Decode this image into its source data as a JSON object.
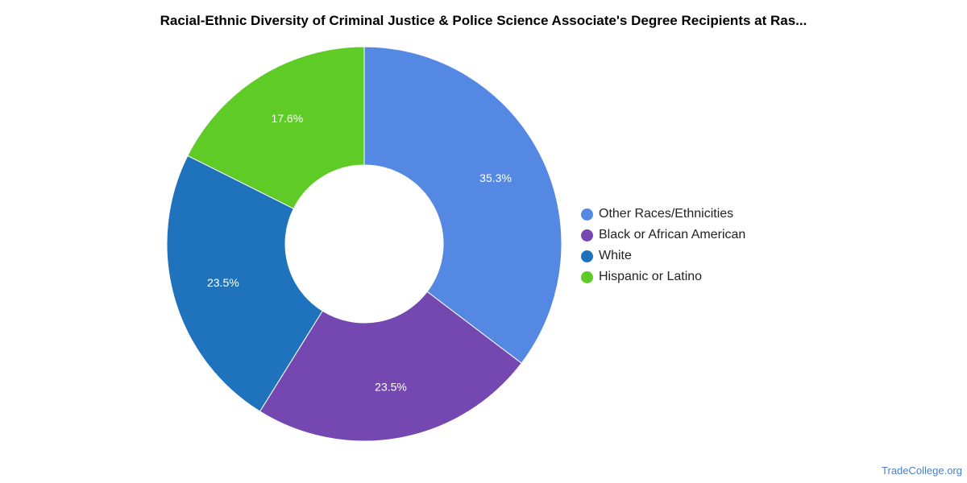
{
  "chart_data": {
    "type": "pie",
    "variant": "donut",
    "title": "Racial-Ethnic Diversity of Criminal Justice & Police Science Associate's Degree Recipients at Ras...",
    "categories": [
      "Other Races/Ethnicities",
      "Black or African American",
      "White",
      "Hispanic or Latino"
    ],
    "values": [
      35.3,
      23.5,
      23.5,
      17.6
    ],
    "labels": [
      "35.3%",
      "23.5%",
      "23.5%",
      "17.6%"
    ],
    "colors": [
      "#5588e3",
      "#7447b1",
      "#1e73bc",
      "#5fcb26"
    ],
    "legend_position": "right"
  },
  "source": "TradeCollege.org"
}
